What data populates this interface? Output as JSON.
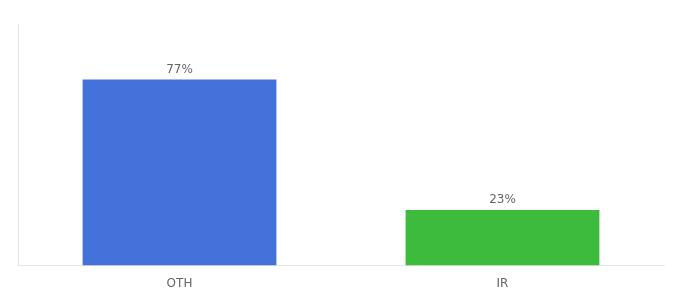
{
  "chart_data": {
    "type": "bar",
    "categories": [
      "OTH",
      "IR"
    ],
    "values": [
      77,
      23
    ],
    "value_labels": [
      "77%",
      "23%"
    ],
    "data_labels": true,
    "colors": [
      "#4472db",
      "#3dbb3d"
    ],
    "ylim": [
      0,
      100
    ],
    "grid": false,
    "tick_labels": "x"
  }
}
